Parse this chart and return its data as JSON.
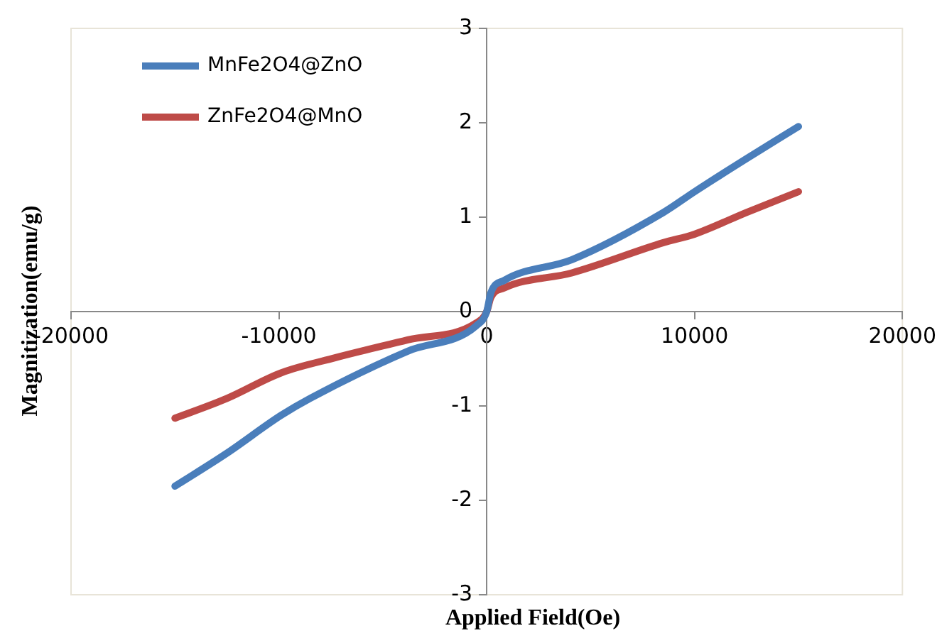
{
  "chart_data": {
    "type": "line",
    "xlabel": "Applied Field(Oe)",
    "ylabel": "Magnitization(emu/g)",
    "xlim": [
      -20000,
      20000
    ],
    "xticks": [
      -20000,
      -10000,
      0,
      10000,
      20000
    ],
    "ylim": [
      -3,
      3
    ],
    "yticks": [
      -3,
      -2,
      -1,
      0,
      1,
      2,
      3
    ],
    "grid": false,
    "legend": "top left",
    "marker": "none",
    "line_style": "solid",
    "series": [
      {
        "name": "MnFe2O4@ZnO",
        "color": "#4a7ebb",
        "x": [
          -15000,
          -12500,
          -9900,
          -8500,
          -3800,
          -500,
          0,
          200,
          840,
          4100,
          8500,
          10000,
          12500,
          15000
        ],
        "values": [
          -1.85,
          -1.5,
          -1.1,
          -0.92,
          -0.42,
          -0.15,
          0,
          0.2,
          0.33,
          0.55,
          1.05,
          1.27,
          1.62,
          1.96
        ]
      },
      {
        "name": "ZnFe2O4@MnO",
        "color": "#be4b48",
        "x": [
          -15000,
          -12500,
          -9900,
          -7300,
          -3800,
          -500,
          0,
          200,
          840,
          4100,
          8500,
          10000,
          12500,
          15000
        ],
        "values": [
          -1.13,
          -0.92,
          -0.65,
          -0.49,
          -0.3,
          -0.12,
          0,
          0.15,
          0.25,
          0.41,
          0.73,
          0.82,
          1.05,
          1.27
        ]
      }
    ]
  }
}
